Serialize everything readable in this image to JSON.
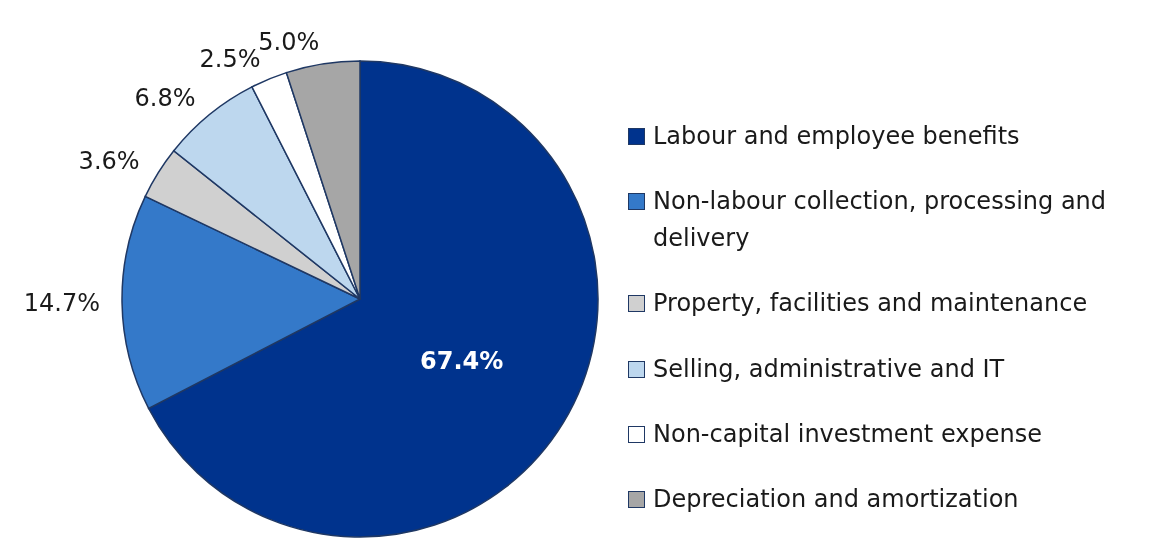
{
  "chart_data": {
    "type": "pie",
    "categories": [
      "Labour and employee benefits",
      "Non-labour collection, processing and delivery",
      "Property, facilities and maintenance",
      "Selling, administrative and IT",
      "Non-capital investment expense",
      "Depreciation and amortization"
    ],
    "values": [
      67.4,
      14.7,
      3.6,
      6.8,
      2.5,
      5.0
    ],
    "value_labels": [
      "67.4%",
      "14.7%",
      "3.6%",
      "6.8%",
      "2.5%",
      "5.0%"
    ],
    "colors": [
      "#00338d",
      "#3479c9",
      "#d0d0d0",
      "#bdd7ee",
      "#ffffff",
      "#a6a6a6"
    ],
    "legend": "right"
  }
}
